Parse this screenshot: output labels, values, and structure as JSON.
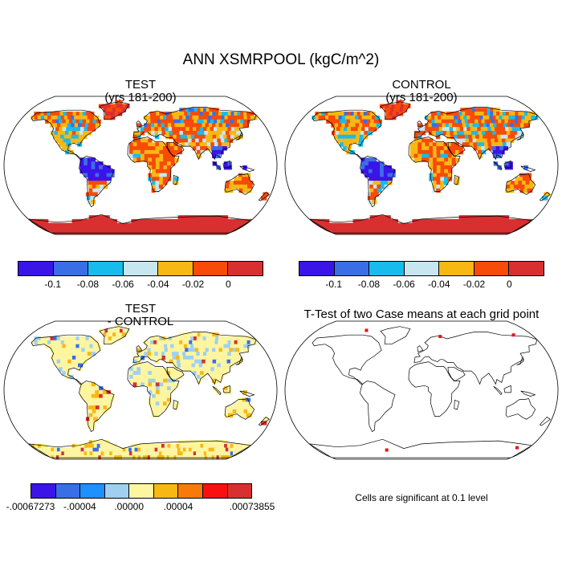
{
  "title": "ANN XSMRPOOL (kgC/m^2)",
  "panels": {
    "test": {
      "line1": "TEST",
      "line2": "(yrs 181-200)"
    },
    "control": {
      "line1": "CONTROL",
      "line2": "(yrs 181-200)"
    },
    "diff": {
      "line1": "TEST",
      "line2": "- CONTROL"
    },
    "ttest": {
      "line1": "T-Test of two Case means at each grid point"
    }
  },
  "colorbar_main": {
    "colors": [
      "#3b14e8",
      "#3a6ee6",
      "#18bcec",
      "#c8e6f0",
      "#f8b814",
      "#f84a08",
      "#d83030"
    ],
    "labels": [
      "-0.1",
      "-0.08",
      "-0.06",
      "-0.04",
      "-0.02",
      "0"
    ]
  },
  "colorbar_diff": {
    "colors": [
      "#3b14e8",
      "#3a6ee6",
      "#1e90ff",
      "#a0d0f0",
      "#fdf5a0",
      "#f8b814",
      "#f87a08",
      "#f81010",
      "#d83030"
    ],
    "labels": [
      ".00067273",
      "-.00004",
      ".00000",
      ".00004",
      ".00073855"
    ],
    "first_label_prefix": "-"
  },
  "note": "Cells are significant at 0.1 level"
}
